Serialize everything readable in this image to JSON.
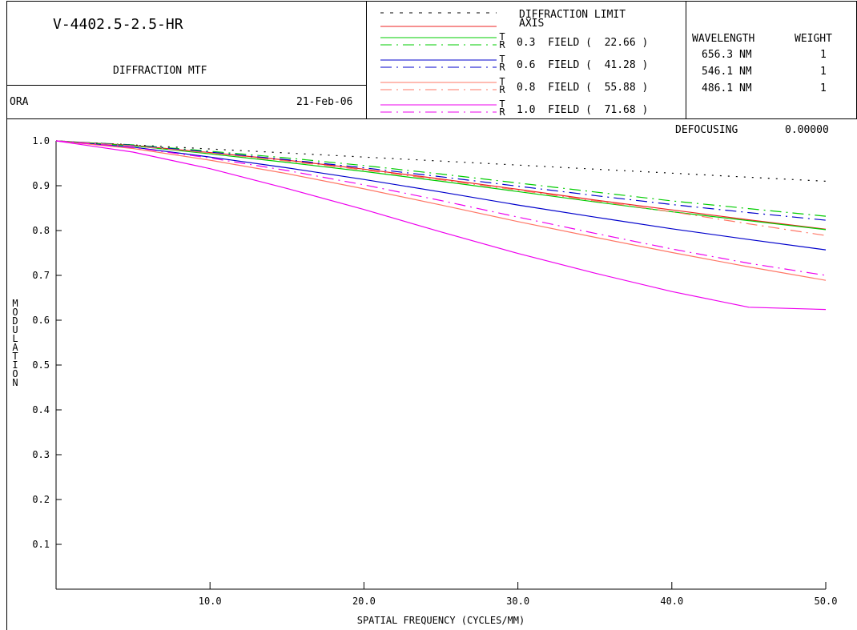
{
  "header": {
    "lens_name": "V-4402.5-2.5-HR",
    "plot_title": "DIFFRACTION MTF",
    "program": "ORA",
    "date": "21-Feb-06",
    "defocusing_label": "DEFOCUSING",
    "defocusing_value": "0.00000"
  },
  "legend": {
    "diffraction_limit": "DIFFRACTION LIMIT",
    "axis": "AXIS",
    "tangential_mark": "T",
    "radial_mark": "R",
    "fields": [
      {
        "label": "0.3  FIELD (  22.66 )",
        "color": "#00cc00"
      },
      {
        "label": "0.6  FIELD (  41.28 )",
        "color": "#0000cc"
      },
      {
        "label": "0.8  FIELD (  55.88 )",
        "color": "#ff7766"
      },
      {
        "label": "1.0  FIELD (  71.68 )",
        "color": "#ee00ee"
      }
    ]
  },
  "wavelengths": {
    "header_wavelength": "WAVELENGTH",
    "header_weight": "WEIGHT",
    "rows": [
      {
        "wavelength": "656.3 NM",
        "weight": "1"
      },
      {
        "wavelength": "546.1 NM",
        "weight": "1"
      },
      {
        "wavelength": "486.1 NM",
        "weight": "1"
      }
    ]
  },
  "chart_data": {
    "type": "line",
    "xlabel": "SPATIAL FREQUENCY (CYCLES/MM)",
    "ylabel": "MODULATION",
    "xlim": [
      0,
      50
    ],
    "ylim": [
      0,
      1.0
    ],
    "xticks": [
      10.0,
      20.0,
      30.0,
      40.0,
      50.0
    ],
    "xtick_labels": [
      "10.0",
      "20.0",
      "30.0",
      "40.0",
      "50.0"
    ],
    "yticks": [
      0.1,
      0.2,
      0.3,
      0.4,
      0.5,
      0.6,
      0.7,
      0.8,
      0.9,
      1.0
    ],
    "ytick_labels": [
      "0.1",
      "0.2",
      "0.3",
      "0.4",
      "0.5",
      "0.6",
      "0.7",
      "0.8",
      "0.9",
      "1.0"
    ],
    "x": [
      0,
      5,
      10,
      15,
      20,
      25,
      30,
      35,
      40,
      45,
      50
    ],
    "series": [
      {
        "name": "DIFFRACTION LIMIT",
        "color": "#000000",
        "dash": "dot",
        "values": [
          1.0,
          0.991,
          0.982,
          0.973,
          0.964,
          0.955,
          0.946,
          0.937,
          0.928,
          0.919,
          0.91
        ]
      },
      {
        "name": "AXIS",
        "color": "#ee2222",
        "dash": "solid",
        "values": [
          1.0,
          0.99,
          0.974,
          0.957,
          0.937,
          0.915,
          0.892,
          0.868,
          0.846,
          0.824,
          0.803
        ]
      },
      {
        "name": "0.3 FIELD T",
        "color": "#00cc00",
        "dash": "solid",
        "values": [
          1.0,
          0.989,
          0.971,
          0.952,
          0.932,
          0.91,
          0.887,
          0.864,
          0.842,
          0.822,
          0.802
        ]
      },
      {
        "name": "0.3 FIELD R",
        "color": "#00cc00",
        "dash": "dashdot",
        "values": [
          1.0,
          0.991,
          0.977,
          0.962,
          0.945,
          0.926,
          0.906,
          0.886,
          0.866,
          0.849,
          0.832
        ]
      },
      {
        "name": "0.6 FIELD T",
        "color": "#0000cc",
        "dash": "solid",
        "values": [
          1.0,
          0.986,
          0.964,
          0.94,
          0.914,
          0.886,
          0.857,
          0.83,
          0.804,
          0.78,
          0.757
        ]
      },
      {
        "name": "0.6 FIELD R",
        "color": "#0000cc",
        "dash": "dashdot",
        "values": [
          1.0,
          0.99,
          0.975,
          0.958,
          0.94,
          0.92,
          0.899,
          0.878,
          0.858,
          0.84,
          0.823
        ]
      },
      {
        "name": "0.8 FIELD T",
        "color": "#ff7766",
        "dash": "solid",
        "values": [
          1.0,
          0.983,
          0.957,
          0.927,
          0.893,
          0.857,
          0.82,
          0.785,
          0.751,
          0.719,
          0.689
        ]
      },
      {
        "name": "0.8 FIELD R",
        "color": "#ff7766",
        "dash": "dashdot",
        "values": [
          1.0,
          0.989,
          0.973,
          0.955,
          0.935,
          0.913,
          0.89,
          0.866,
          0.842,
          0.815,
          0.789
        ]
      },
      {
        "name": "1.0 FIELD T",
        "color": "#ee00ee",
        "dash": "solid",
        "values": [
          1.0,
          0.975,
          0.938,
          0.894,
          0.847,
          0.797,
          0.749,
          0.705,
          0.664,
          0.629,
          0.624
        ]
      },
      {
        "name": "1.0 FIELD R",
        "color": "#ee00ee",
        "dash": "dashdot",
        "values": [
          1.0,
          0.985,
          0.962,
          0.934,
          0.902,
          0.867,
          0.83,
          0.794,
          0.759,
          0.727,
          0.7
        ]
      }
    ]
  }
}
